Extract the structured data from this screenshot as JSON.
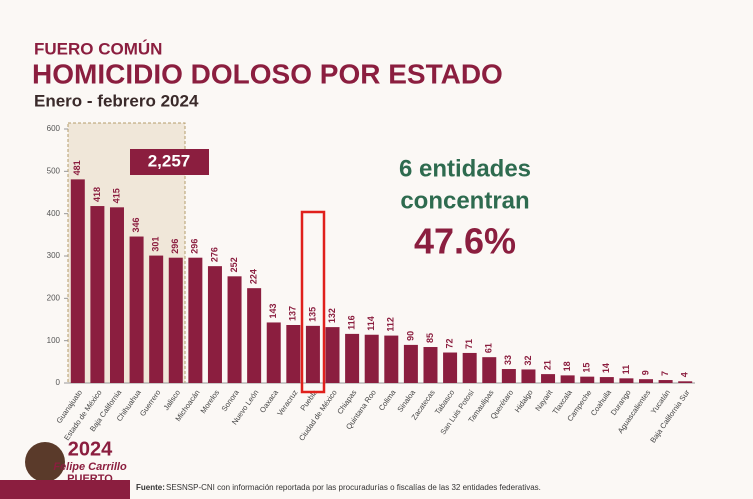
{
  "chart_data": {
    "type": "bar",
    "supertitle": "FUERO COMÚN",
    "title": "HOMICIDIO DOLOSO POR ESTADO",
    "subtitle": "Enero - febrero 2024",
    "categories": [
      "Guanajuato",
      "Estado de México",
      "Baja California",
      "Chihuahua",
      "Guerrero",
      "Jalisco",
      "Michoacán",
      "Morelos",
      "Sonora",
      "Nuevo León",
      "Oaxaca",
      "Veracruz",
      "Puebla",
      "Ciudad de México",
      "Chiapas",
      "Quintana Roo",
      "Colima",
      "Sinaloa",
      "Zacatecas",
      "Tabasco",
      "San Luis Potosí",
      "Tamaulipas",
      "Querétaro",
      "Hidalgo",
      "Nayarit",
      "Tlaxcala",
      "Campeche",
      "Coahuila",
      "Durango",
      "Aguascalientes",
      "Yucatán",
      "Baja California Sur"
    ],
    "values": [
      481,
      418,
      415,
      346,
      301,
      296,
      296,
      276,
      252,
      224,
      143,
      137,
      135,
      132,
      116,
      114,
      112,
      90,
      85,
      72,
      71,
      61,
      33,
      32,
      21,
      18,
      15,
      14,
      11,
      9,
      7,
      4
    ],
    "color": "#8b1e3f",
    "ylim": [
      0,
      600
    ],
    "yticks": [
      0,
      100,
      200,
      300,
      400,
      500,
      600
    ],
    "annotations": {
      "total": "2,257",
      "note_line1": "6 entidades",
      "note_line2": "concentran",
      "note_percent": "47.6%"
    }
  },
  "logo": {
    "year": "2024",
    "line1": "Felipe Carrillo",
    "line2": "PUERTO"
  },
  "source": {
    "label": "Fuente:",
    "text": "SESNSP-CNI con información reportada por las procuradurías o fiscalías de las 32 entidades federativas."
  }
}
